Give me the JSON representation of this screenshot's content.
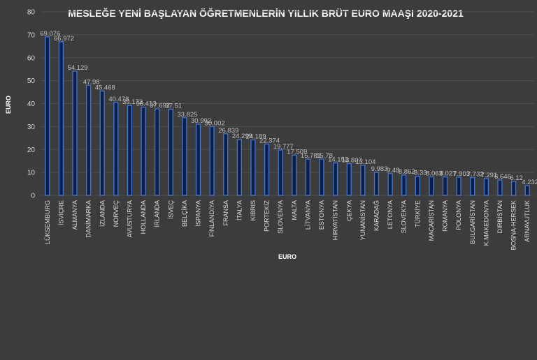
{
  "chart_data": {
    "type": "bar",
    "title": "MESLEĞE YENİ BAŞLAYAN ÖĞRETMENLERİN YILLIK BRÜT EURO MAAŞI 2020-2021",
    "xlabel": "EURO",
    "ylabel": "EURO",
    "ylim": [
      0,
      80
    ],
    "yticks": [
      "0",
      "10",
      "20",
      "30",
      "40",
      "50",
      "60",
      "70",
      "80"
    ],
    "grid": true,
    "legend": "none",
    "categories": [
      "LÜKSEMBURG",
      "İSVİÇRE",
      "ALMANYA",
      "DANİMARKA",
      "İZLANDA",
      "NORVEÇ",
      "AVUSTURYA",
      "HOLLANDA",
      "İRLANDA",
      "İSVEÇ",
      "BELÇİKA",
      "İSPANYA",
      "FİNLANDİYA",
      "FRANSA",
      "İTALYA",
      "KIBRIS",
      "PORTEKİZ",
      "SLOVENYA",
      "MALTA",
      "LİTVANYA",
      "ESTONYA",
      "HIRVATİSTAN",
      "ÇEKYA",
      "YUNANİSTAN",
      "KARADAĞ",
      "LETONYA",
      "SLOVEKYA",
      "TÜRKİYE",
      "MACARİSTAN",
      "ROMANYA",
      "POLONYA",
      "BULGARİSTAN",
      "K.MAKEDONYA",
      "DIRBİSTAN",
      "BOSNA-HERSEK",
      "ARNAVUTLUK"
    ],
    "values": [
      69.076,
      66.972,
      54.129,
      47.98,
      45.468,
      40.478,
      39.172,
      38.413,
      37.692,
      37.51,
      33.825,
      30.992,
      30.002,
      26.839,
      24.299,
      24.189,
      22.374,
      19.777,
      17.509,
      15.781,
      15.78,
      14.152,
      13.807,
      13.104,
      9.983,
      9.48,
      8.862,
      8.33,
      8.063,
      8.027,
      7.903,
      7.732,
      7.291,
      6.646,
      6.12,
      4.232
    ],
    "labels": [
      "69.076",
      "66.972",
      "54.129",
      "47.98",
      "45.468",
      "40.478",
      "39.172",
      "38.413",
      "37.692",
      "37.51",
      "33.825",
      "30.992",
      "30.002",
      "26.839",
      "24.299",
      "24.189",
      "22.374",
      "19.777",
      "17.509",
      "15.781",
      "15.78",
      "14.152",
      "13.807",
      "13.104",
      "9.983",
      "9.48",
      "8.862",
      "8.33",
      "8.063",
      "8.027",
      "7.903",
      "7.732",
      "7.291",
      "6.646",
      "6.12",
      "4.232"
    ],
    "colors": {
      "background": "#3c3c3c",
      "bar_fill": "#0a1e4a",
      "bar_stroke": "#4472c4",
      "text": "#d9d9d9",
      "grid": "#4e4e4e"
    }
  }
}
